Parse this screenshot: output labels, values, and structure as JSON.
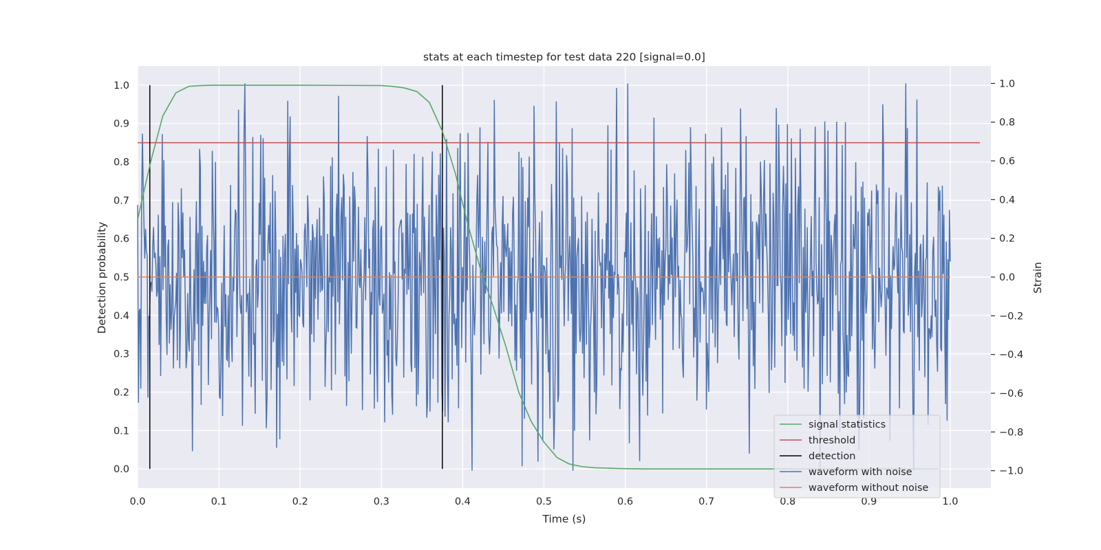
{
  "chart_data": {
    "type": "line",
    "title": "stats at each timestep for test data 220 [signal=0.0]",
    "xlabel": "Time (s)",
    "ylabel": "Detection probability",
    "ylabel_right": "Strain",
    "xlim": [
      0.0,
      1.05
    ],
    "ylim": [
      -0.05,
      1.05
    ],
    "ylim_right": [
      -1.09,
      1.09
    ],
    "x_ticks": [
      "0.0",
      "0.1",
      "0.2",
      "0.3",
      "0.4",
      "0.5",
      "0.6",
      "0.7",
      "0.8",
      "0.9",
      "1.0"
    ],
    "y_ticks": [
      "0.0",
      "0.1",
      "0.2",
      "0.3",
      "0.4",
      "0.5",
      "0.6",
      "0.7",
      "0.8",
      "0.9",
      "1.0"
    ],
    "y_ticks_right": [
      "−1.0",
      "−0.8",
      "−0.6",
      "−0.4",
      "−0.2",
      "0.0",
      "0.2",
      "0.4",
      "0.6",
      "0.8",
      "1.0"
    ],
    "grid": true,
    "legend_position": "lower-right",
    "legend": [
      "signal statistics",
      "threshold",
      "detection",
      "waveform with noise",
      "waveform without noise"
    ],
    "colors": {
      "signal_statistics": "#55a868",
      "threshold": "#c44e52",
      "detection": "#000000",
      "waveform_with_noise": "#4c72b0",
      "waveform_without_noise": "#dd8452",
      "plot_background": "#eaeaf2",
      "grid": "#ffffff"
    },
    "signal_statistics": {
      "x": [
        0.0,
        0.016,
        0.031,
        0.047,
        0.063,
        0.078,
        0.094,
        0.109,
        0.125,
        0.2,
        0.3,
        0.313,
        0.328,
        0.344,
        0.359,
        0.375,
        0.391,
        0.406,
        0.422,
        0.438,
        0.453,
        0.469,
        0.484,
        0.5,
        0.516,
        0.531,
        0.547,
        0.563,
        0.578,
        0.594,
        0.625,
        0.7,
        0.8,
        0.9,
        0.985
      ],
      "y": [
        0.65,
        0.8,
        0.92,
        0.98,
        0.997,
        0.999,
        1.0,
        1.0,
        1.0,
        1.0,
        0.999,
        0.997,
        0.993,
        0.983,
        0.955,
        0.88,
        0.77,
        0.64,
        0.52,
        0.42,
        0.32,
        0.2,
        0.125,
        0.07,
        0.03,
        0.013,
        0.006,
        0.003,
        0.002,
        0.001,
        0.0,
        0.0,
        0.0,
        0.0,
        0.0
      ]
    },
    "threshold": 0.85,
    "detections_x": [
      0.015,
      0.375
    ],
    "waveform_with_noise": {
      "n_points": 1024,
      "x_start": 0.0,
      "x_end": 1.0,
      "std": 0.38,
      "range": [
        -1.0,
        1.0
      ]
    },
    "waveform_without_noise": {
      "x": [
        0.0,
        1.0
      ],
      "y": [
        0.0,
        0.0
      ]
    }
  }
}
